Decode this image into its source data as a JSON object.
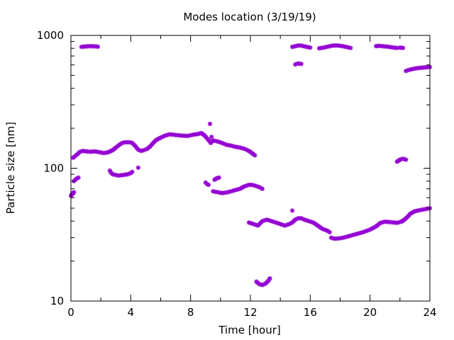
{
  "chart_data": {
    "type": "scatter",
    "title": "Modes location (3/19/19)",
    "xlabel": "Time [hour]",
    "ylabel": "Particle size [nm]",
    "xlim": [
      0,
      24
    ],
    "ylim": [
      10,
      1000
    ],
    "yscale": "log",
    "xticks": [
      0,
      4,
      8,
      12,
      16,
      20,
      24
    ],
    "xtick_labels": [
      "0",
      "4",
      "8",
      "12",
      "16",
      "20",
      "24"
    ],
    "yticks": [
      10,
      100,
      1000
    ],
    "ytick_labels": [
      "10",
      "100",
      "1000"
    ],
    "grid": false,
    "legend": "none",
    "marker_color": "#9400d3",
    "segments": [
      {
        "x": [
          0.0,
          0.1,
          0.2
        ],
        "y": [
          62,
          64,
          66
        ]
      },
      {
        "x": [
          0.15,
          0.3,
          0.45,
          0.6,
          0.8,
          1.0,
          1.3,
          1.6,
          1.9,
          2.2,
          2.5,
          2.8,
          3.0,
          3.3,
          3.5,
          3.7,
          3.9,
          4.1,
          4.3,
          4.5,
          4.7,
          4.9,
          5.1,
          5.3,
          5.5,
          5.7,
          6.0,
          6.3,
          6.6,
          7.0,
          7.4,
          7.8,
          8.2,
          8.5,
          8.7,
          8.9,
          9.1,
          9.3
        ],
        "y": [
          120,
          124,
          128,
          133,
          135,
          134,
          133,
          134,
          132,
          130,
          132,
          137,
          143,
          152,
          156,
          157,
          157,
          155,
          147,
          138,
          135,
          137,
          140,
          146,
          155,
          163,
          170,
          176,
          180,
          178,
          176,
          175,
          179,
          181,
          184,
          178,
          168,
          158
        ]
      },
      {
        "x": [
          0.2,
          0.35,
          0.5
        ],
        "y": [
          80,
          83,
          85
        ]
      },
      {
        "x": [
          0.7,
          0.9,
          1.1,
          1.3,
          1.5,
          1.7,
          1.8
        ],
        "y": [
          820,
          825,
          828,
          830,
          828,
          826,
          822
        ]
      },
      {
        "x": [
          2.6,
          2.7,
          2.8,
          3.0,
          3.2,
          3.5,
          3.8,
          4.0,
          4.1
        ],
        "y": [
          96,
          92,
          90,
          89,
          88,
          89,
          90,
          92,
          94
        ]
      },
      {
        "x": [
          4.5
        ],
        "y": [
          101
        ]
      },
      {
        "x": [
          9.3
        ],
        "y": [
          216
        ]
      },
      {
        "x": [
          9.4
        ],
        "y": [
          172
        ]
      },
      {
        "x": [
          9.35,
          9.5,
          9.7,
          9.9,
          10.1,
          10.4,
          10.7,
          11.0,
          11.3,
          11.6,
          11.9,
          12.1,
          12.3
        ],
        "y": [
          155,
          162,
          160,
          158,
          155,
          150,
          148,
          145,
          143,
          140,
          135,
          130,
          125
        ]
      },
      {
        "x": [
          9.0,
          9.1,
          9.2
        ],
        "y": [
          78,
          76,
          75
        ]
      },
      {
        "x": [
          9.6,
          9.75,
          9.9
        ],
        "y": [
          82,
          84,
          85
        ]
      },
      {
        "x": [
          9.5,
          9.8,
          10.1,
          10.5,
          10.9,
          11.3,
          11.6,
          11.9,
          12.1,
          12.3,
          12.6,
          12.8
        ],
        "y": [
          67,
          66,
          65,
          66,
          68,
          70,
          73,
          75,
          75,
          74,
          72,
          70
        ]
      },
      {
        "x": [
          11.9,
          12.2,
          12.5,
          12.8,
          13.1,
          13.4,
          13.7,
          14.0,
          14.3,
          14.6,
          14.8,
          15.0,
          15.2,
          15.4,
          15.6,
          15.9,
          16.2,
          16.5,
          16.8,
          17.1,
          17.3
        ],
        "y": [
          39,
          38,
          37,
          40,
          41,
          40,
          39,
          38,
          37,
          38,
          39,
          41,
          42,
          42,
          41,
          40,
          39,
          37,
          35,
          34,
          33
        ]
      },
      {
        "x": [
          12.4,
          12.6,
          12.8,
          13.0,
          13.2,
          13.3
        ],
        "y": [
          14,
          13.4,
          13.2,
          13.5,
          14.2,
          14.8
        ]
      },
      {
        "x": [
          14.8
        ],
        "y": [
          48
        ]
      },
      {
        "x": [
          14.8,
          15.0,
          15.2,
          15.4,
          15.6,
          15.8,
          16.0
        ],
        "y": [
          820,
          830,
          840,
          838,
          828,
          818,
          810
        ]
      },
      {
        "x": [
          15.0,
          15.2,
          15.4
        ],
        "y": [
          605,
          615,
          610
        ]
      },
      {
        "x": [
          16.6,
          16.9,
          17.2,
          17.5,
          17.8,
          18.1,
          18.4,
          18.7
        ],
        "y": [
          800,
          810,
          825,
          838,
          840,
          832,
          820,
          805
        ]
      },
      {
        "x": [
          17.4,
          17.6,
          17.9,
          18.2,
          18.5,
          18.8,
          19.2,
          19.6,
          20.0,
          20.4,
          20.7,
          21.0,
          21.4,
          21.8,
          22.1,
          22.3,
          22.5,
          22.7,
          23.0,
          23.4,
          23.8,
          24.0
        ],
        "y": [
          30,
          29.5,
          29.6,
          30,
          30.6,
          31.3,
          32.2,
          33.2,
          34.5,
          36.5,
          38.8,
          39.6,
          39.2,
          38.8,
          39.6,
          41,
          43,
          45.5,
          47.5,
          48.5,
          49.5,
          50
        ]
      },
      {
        "x": [
          20.4,
          20.6,
          20.9,
          21.2,
          21.5,
          21.8
        ],
        "y": [
          830,
          835,
          828,
          822,
          812,
          805
        ]
      },
      {
        "x": [
          22.0,
          22.2
        ],
        "y": [
          810,
          805
        ]
      },
      {
        "x": [
          21.8,
          22.0,
          22.2,
          22.4
        ],
        "y": [
          112,
          116,
          118,
          116
        ]
      },
      {
        "x": [
          22.4,
          22.6,
          22.9,
          23.2,
          23.5,
          23.8,
          24.0
        ],
        "y": [
          540,
          550,
          560,
          568,
          572,
          575,
          578
        ]
      }
    ]
  }
}
